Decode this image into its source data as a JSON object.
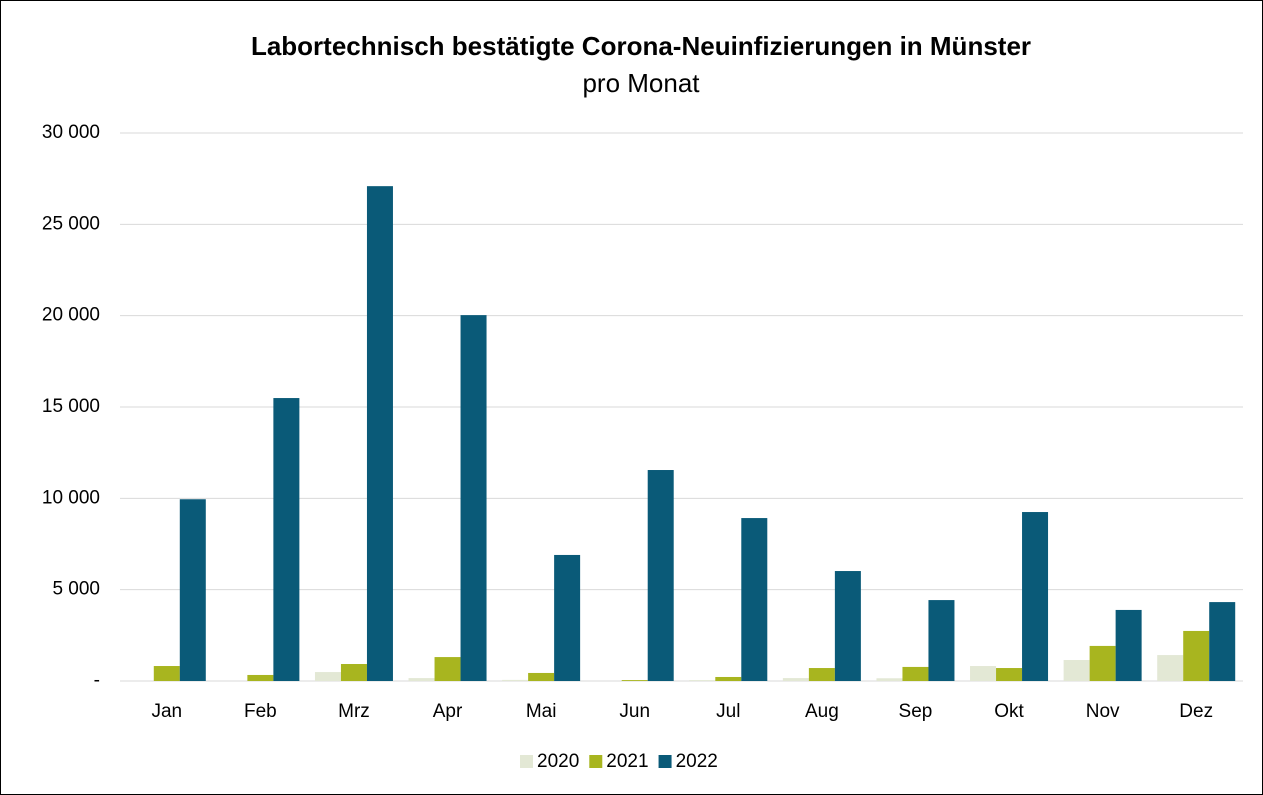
{
  "chart_data": {
    "type": "bar",
    "title": "Labortechnisch bestätigte Corona-Neuinfizierungen in Münster",
    "subtitle": "pro Monat",
    "categories": [
      "Jan",
      "Feb",
      "Mrz",
      "Apr",
      "Mai",
      "Jun",
      "Jul",
      "Aug",
      "Sep",
      "Okt",
      "Nov",
      "Dez"
    ],
    "series": [
      {
        "name": "2020",
        "color": "#e3e8d5",
        "values": [
          0,
          0,
          490,
          160,
          60,
          0,
          50,
          160,
          150,
          820,
          1150,
          1420
        ]
      },
      {
        "name": "2021",
        "color": "#a8b51f",
        "values": [
          820,
          330,
          930,
          1310,
          440,
          50,
          220,
          710,
          770,
          710,
          1920,
          2740
        ]
      },
      {
        "name": "2022",
        "color": "#0a5a78",
        "values": [
          9950,
          15490,
          27090,
          20030,
          6900,
          11550,
          8920,
          6020,
          4430,
          9250,
          3890,
          4320
        ]
      }
    ],
    "ylim": [
      0,
      30000
    ],
    "yticks": [
      {
        "value": 0,
        "label": "-"
      },
      {
        "value": 5000,
        "label": "5 000"
      },
      {
        "value": 10000,
        "label": "10 000"
      },
      {
        "value": 15000,
        "label": "15 000"
      },
      {
        "value": 20000,
        "label": "20 000"
      },
      {
        "value": 25000,
        "label": "25 000"
      },
      {
        "value": 30000,
        "label": "30 000"
      }
    ],
    "grid": true,
    "legend": "bottom"
  }
}
